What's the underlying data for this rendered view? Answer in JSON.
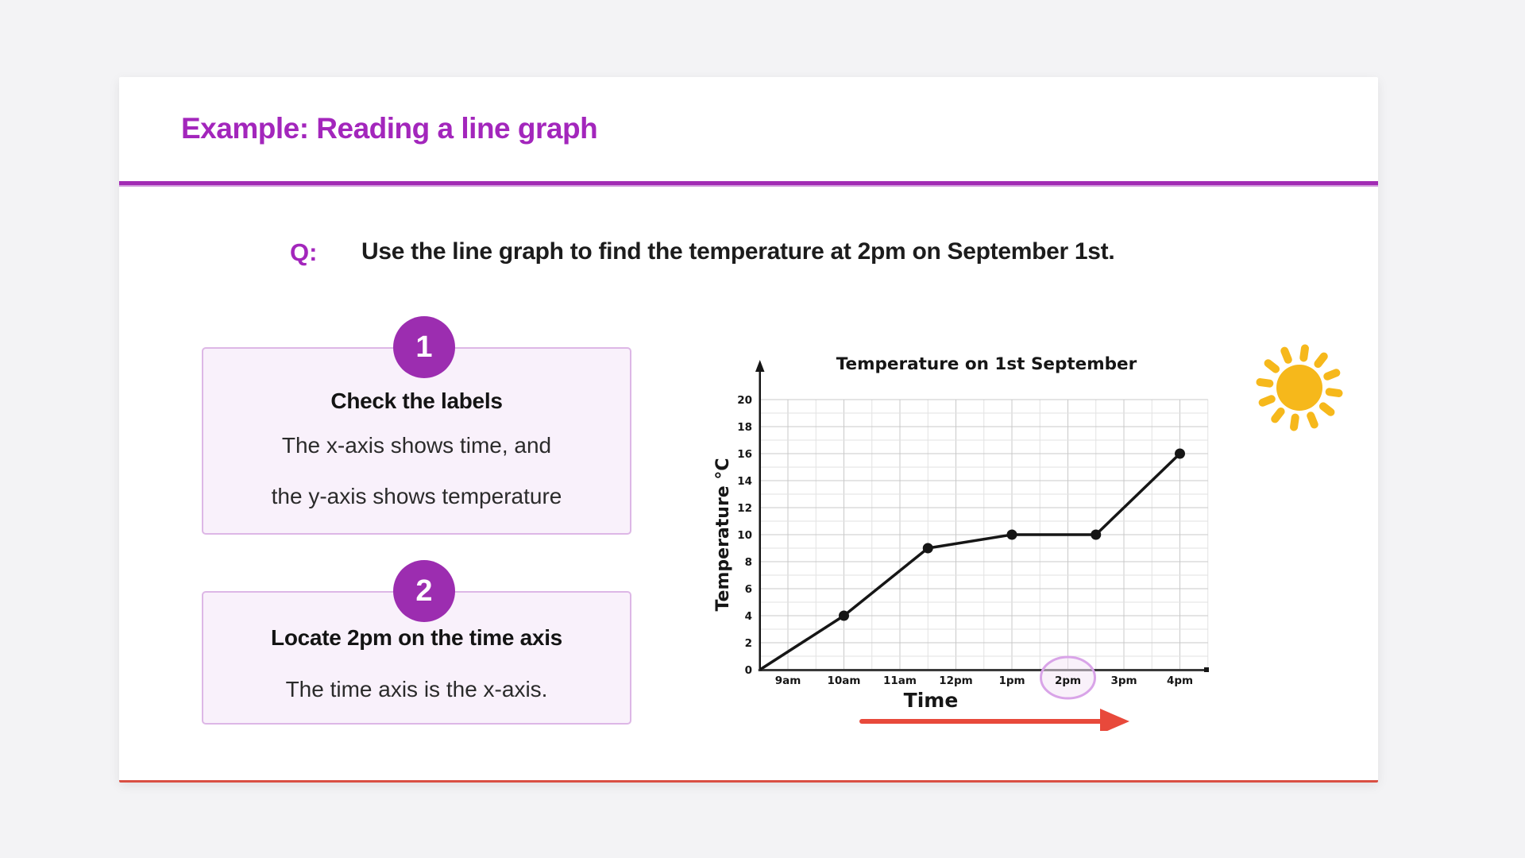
{
  "header": {
    "title": "Example: Reading a line graph"
  },
  "question": {
    "label": "Q:",
    "text": "Use the line graph to find the temperature at 2pm on September 1st."
  },
  "steps": [
    {
      "number": "1",
      "heading": "Check the labels",
      "lines": [
        "The x-axis shows time, and",
        "the y-axis shows temperature"
      ]
    },
    {
      "number": "2",
      "heading": "Locate 2pm on the time axis",
      "lines": [
        "The time axis is the x-axis."
      ]
    }
  ],
  "chart_data": {
    "type": "line",
    "title": "Temperature on 1st September",
    "xlabel": "Time",
    "ylabel": "Temperature °C",
    "x_tick_labels": [
      "9am",
      "10am",
      "11am",
      "12pm",
      "1pm",
      "2pm",
      "3pm",
      "4pm"
    ],
    "x_tick_hours": [
      9,
      10,
      11,
      12,
      13,
      14,
      15,
      16
    ],
    "ylim": [
      0,
      20
    ],
    "y_tick_step": 2,
    "grid": true,
    "legend_position": "none",
    "series": [
      {
        "name": "Temperature",
        "points": [
          {
            "hour": 8.5,
            "temp": 0,
            "marker": false
          },
          {
            "hour": 10,
            "temp": 4,
            "marker": true
          },
          {
            "hour": 11.5,
            "temp": 9,
            "marker": true
          },
          {
            "hour": 13,
            "temp": 10,
            "marker": true
          },
          {
            "hour": 14.5,
            "temp": 10,
            "marker": true
          },
          {
            "hour": 16,
            "temp": 16,
            "marker": true
          }
        ]
      }
    ],
    "highlighted_tick": "2pm"
  },
  "colors": {
    "accent_purple": "#a326bc",
    "badge_purple": "#9c2db0",
    "box_border": "#ddb7e6",
    "box_bg": "#f9f1fb",
    "divider_purple": "#a22bb4",
    "card_bottom_line": "#d94f43",
    "highlight_ellipse_stroke": "#d9a4e8",
    "highlight_ellipse_fill": "#f3e3f6",
    "time_arrow_red": "#e8493b",
    "sun_yellow": "#f6b81b",
    "ink": "#161616",
    "grid_major": "#c9c9c9",
    "grid_minor": "#e2e2e2"
  }
}
